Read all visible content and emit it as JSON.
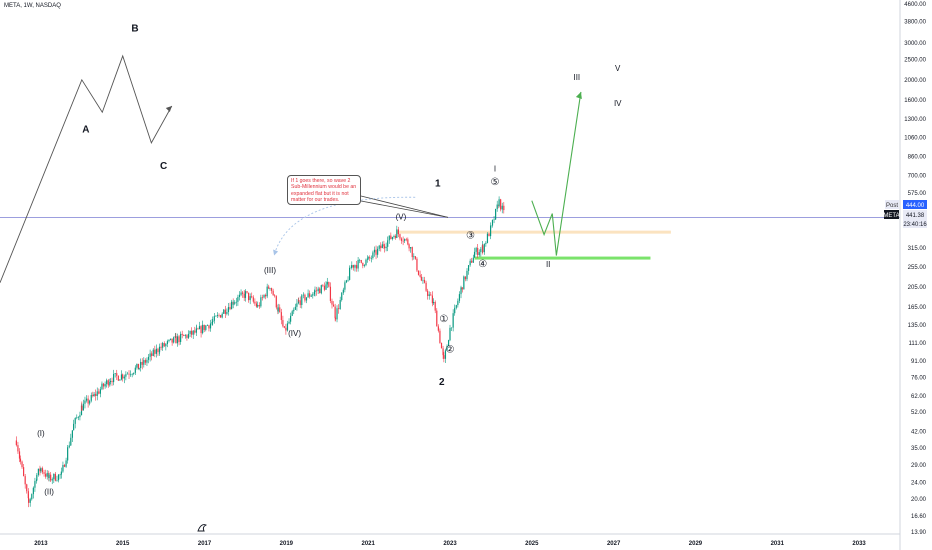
{
  "header": {
    "symbol": "META, 1W, NASDAQ"
  },
  "note": {
    "text": "If 1 goes there, so wave 2 Sub-Millennium would be an expanded flat but it is not matter for our trades."
  },
  "chart_data": {
    "type": "candlestick",
    "symbol": "META",
    "interval": "1W",
    "exchange": "NASDAQ",
    "y_scale": "log",
    "ylim": [
      13.9,
      4600
    ],
    "xlim": [
      2012,
      2034
    ],
    "y_ticks": [
      "4600.00",
      "3800.00",
      "3000.00",
      "2500.00",
      "2000.00",
      "1600.00",
      "1300.00",
      "1060.00",
      "860.00",
      "700.00",
      "575.00",
      "315.00",
      "255.00",
      "205.00",
      "165.00",
      "135.00",
      "111.00",
      "91.00",
      "76.00",
      "62.00",
      "52.00",
      "42.00",
      "35.00",
      "29.00",
      "24.00",
      "20.00",
      "16.60",
      "13.90"
    ],
    "x_ticks": [
      "2013",
      "2015",
      "2017",
      "2019",
      "2021",
      "2023",
      "2025",
      "2027",
      "2029",
      "2031",
      "2033"
    ],
    "price_labels": {
      "post_tag": "Post",
      "post_value": "444.00",
      "symbol_tag": "META",
      "last_price": "441.38",
      "countdown": "23:40:16"
    },
    "price_path": [
      [
        2012.4,
        38
      ],
      [
        2012.5,
        30
      ],
      [
        2012.7,
        19
      ],
      [
        2012.9,
        26
      ],
      [
        2013.0,
        28
      ],
      [
        2013.2,
        25
      ],
      [
        2013.5,
        26
      ],
      [
        2013.8,
        45
      ],
      [
        2014.0,
        55
      ],
      [
        2014.3,
        62
      ],
      [
        2014.7,
        75
      ],
      [
        2015.0,
        78
      ],
      [
        2015.4,
        85
      ],
      [
        2015.9,
        105
      ],
      [
        2016.3,
        115
      ],
      [
        2016.8,
        125
      ],
      [
        2017.2,
        140
      ],
      [
        2017.7,
        175
      ],
      [
        2018.0,
        190
      ],
      [
        2018.3,
        165
      ],
      [
        2018.6,
        210
      ],
      [
        2018.8,
        160
      ],
      [
        2018.95,
        125
      ],
      [
        2019.3,
        175
      ],
      [
        2019.7,
        195
      ],
      [
        2020.0,
        210
      ],
      [
        2020.2,
        150
      ],
      [
        2020.6,
        260
      ],
      [
        2021.0,
        275
      ],
      [
        2021.4,
        330
      ],
      [
        2021.7,
        375
      ],
      [
        2022.0,
        330
      ],
      [
        2022.3,
        220
      ],
      [
        2022.6,
        170
      ],
      [
        2022.85,
        90
      ],
      [
        2023.0,
        130
      ],
      [
        2023.3,
        210
      ],
      [
        2023.6,
        300
      ],
      [
        2023.8,
        315
      ],
      [
        2024.0,
        390
      ],
      [
        2024.2,
        525
      ],
      [
        2024.35,
        441
      ]
    ],
    "levels": [
      {
        "name": "horizontal-line",
        "price": 441
      },
      {
        "name": "resistance-zone",
        "price": 375
      },
      {
        "name": "support-zone",
        "price": 282
      }
    ],
    "wave_labels": [
      {
        "text": "(I)",
        "x": 2013.0,
        "y": 40
      },
      {
        "text": "(II)",
        "x": 2013.2,
        "y": 21
      },
      {
        "text": "(III)",
        "x": 2018.6,
        "y": 240
      },
      {
        "text": "(IV)",
        "x": 2019.2,
        "y": 120
      },
      {
        "text": "(V)",
        "x": 2021.8,
        "y": 430
      },
      {
        "text": "1",
        "x": 2022.7,
        "y": 620
      },
      {
        "text": "2",
        "x": 2022.8,
        "y": 70
      },
      {
        "text": "①",
        "x": 2022.85,
        "y": 140
      },
      {
        "text": "②",
        "x": 2023.0,
        "y": 100
      },
      {
        "text": "③",
        "x": 2023.5,
        "y": 350
      },
      {
        "text": "④",
        "x": 2023.8,
        "y": 255
      },
      {
        "text": "⑤",
        "x": 2024.1,
        "y": 630
      },
      {
        "text": "I",
        "x": 2024.1,
        "y": 730
      },
      {
        "text": "II",
        "x": 2025.4,
        "y": 255
      },
      {
        "text": "III",
        "x": 2026.1,
        "y": 2000
      },
      {
        "text": "IV",
        "x": 2027.1,
        "y": 1500
      },
      {
        "text": "V",
        "x": 2027.1,
        "y": 2200
      },
      {
        "text": "A",
        "x": 2014.1,
        "y": 1120
      },
      {
        "text": "B",
        "x": 2015.3,
        "y": 3400
      },
      {
        "text": "C",
        "x": 2016.0,
        "y": 750
      }
    ],
    "projection": [
      [
        2025.0,
        530
      ],
      [
        2025.3,
        365
      ],
      [
        2025.5,
        460
      ],
      [
        2025.6,
        290
      ],
      [
        2026.2,
        1750
      ]
    ],
    "abc_path": [
      [
        2012.0,
        215
      ],
      [
        2014.0,
        2000
      ],
      [
        2014.5,
        1400
      ],
      [
        2015.0,
        2600
      ],
      [
        2015.7,
        1000
      ],
      [
        2016.2,
        1500
      ]
    ]
  }
}
